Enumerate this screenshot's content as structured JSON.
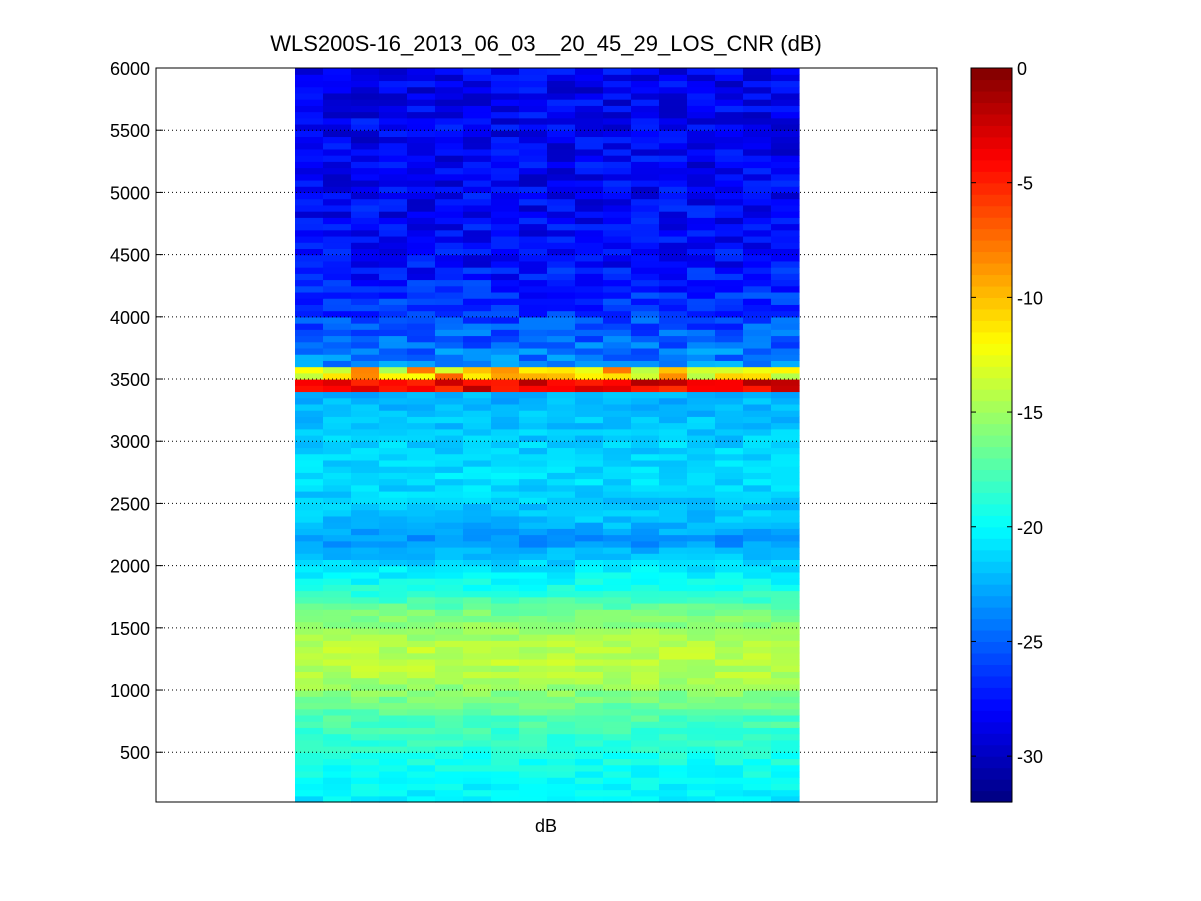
{
  "chart_data": {
    "type": "heatmap",
    "title": "WLS200S-16_2013_06_03__20_45_29_LOS_CNR (dB)",
    "xlabel": "dB",
    "ylabel": "",
    "ylim": [
      100,
      6000
    ],
    "yticks": [
      500,
      1000,
      1500,
      2000,
      2500,
      3000,
      3500,
      4000,
      4500,
      5000,
      5500,
      6000
    ],
    "grid": "horizontal dotted lines at y ticks",
    "colormap": "jet",
    "colorbar": {
      "clim": [
        -32,
        0
      ],
      "ticks": [
        0,
        -5,
        -10,
        -15,
        -20,
        -25,
        -30
      ]
    },
    "columns": 18,
    "band_profile_db": [
      {
        "altitude": 100,
        "value": -20.5
      },
      {
        "altitude": 400,
        "value": -19.5
      },
      {
        "altitude": 800,
        "value": -17.5
      },
      {
        "altitude": 1100,
        "value": -14.5
      },
      {
        "altitude": 1300,
        "value": -14.0
      },
      {
        "altitude": 1600,
        "value": -16.0
      },
      {
        "altitude": 1800,
        "value": -19.0
      },
      {
        "altitude": 2050,
        "value": -21.5
      },
      {
        "altitude": 2200,
        "value": -23.5
      },
      {
        "altitude": 2350,
        "value": -22.0
      },
      {
        "altitude": 2700,
        "value": -21.0
      },
      {
        "altitude": 3000,
        "value": -21.5
      },
      {
        "altitude": 3400,
        "value": -22.5
      },
      {
        "altitude": 3450,
        "value": -3.0
      },
      {
        "altitude": 3550,
        "value": -10.0
      },
      {
        "altitude": 3600,
        "value": -23.5
      },
      {
        "altitude": 4000,
        "value": -26.0
      },
      {
        "altitude": 4500,
        "value": -28.0
      },
      {
        "altitude": 6000,
        "value": -28.5
      }
    ]
  }
}
